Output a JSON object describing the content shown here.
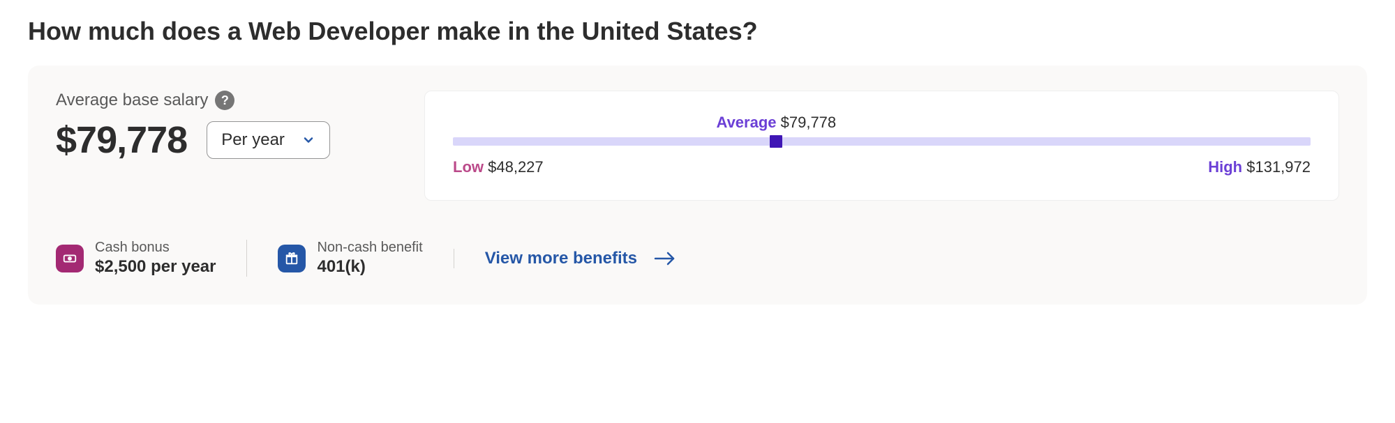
{
  "title": "How much does a Web Developer make in the United States?",
  "salary": {
    "label": "Average base salary",
    "amount": "$79,778",
    "period_selected": "Per year"
  },
  "range": {
    "low_label": "Low",
    "low_value": "$48,227",
    "avg_label": "Average",
    "avg_value": "$79,778",
    "high_label": "High",
    "high_value": "$131,972",
    "marker_percent": 37.7,
    "track_color": "#d9d6fa",
    "marker_color": "#3f16b5",
    "low_color": "#bb4a8a",
    "avg_color": "#6b3fd6",
    "high_color": "#6b3fd6"
  },
  "benefits": {
    "cash": {
      "label": "Cash bonus",
      "value": "$2,500 per year",
      "icon_bg": "#a32973"
    },
    "noncash": {
      "label": "Non-cash benefit",
      "value": "401(k)",
      "icon_bg": "#2557a7"
    },
    "view_more": "View more benefits"
  },
  "colors": {
    "card_bg": "#faf9f8",
    "link": "#2557a7",
    "text": "#2d2d2d",
    "muted": "#595959"
  }
}
